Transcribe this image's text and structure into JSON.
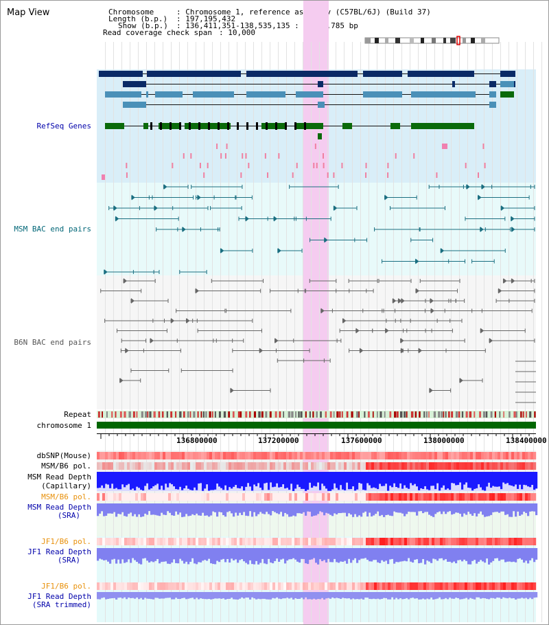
{
  "page": {
    "title": "Map View"
  },
  "info": {
    "chromosome_key": "Chromosome",
    "chromosome_val": ": Chromosome 1, reference assembly (C57BL/6J) (Build 37)",
    "length_key": "Length (b.p.)",
    "length_val": ": 197,195,432",
    "show_key": "Show (b.p.)",
    "show_val": ": 136,411,351-138,535,135 : 2,123,785 bp",
    "coverage_key": "Read coverage check span",
    "coverage_val": ": 10,000"
  },
  "tracks": {
    "refseq": "RefSeq Genes",
    "msm_bac": "MSM BAC end pairs",
    "b6n_bac": "B6N BAC end pairs",
    "repeat": "Repeat",
    "chromosome": "chromosome 1",
    "dbsnp": "dbSNP(Mouse)",
    "msm_b6_pol_1": "MSM/B6 pol.",
    "msm_read_depth_cap_1": "MSM Read Depth",
    "msm_read_depth_cap_2": "(Capillary)",
    "msm_b6_pol_2": "MSM/B6 pol.",
    "msm_read_depth_sra_1": "MSM Read Depth",
    "msm_read_depth_sra_2": "(SRA)",
    "jf1_b6_pol_1": "JF1/B6 pol.",
    "jf1_read_depth_sra_1": "JF1 Read Depth",
    "jf1_read_depth_sra_2": "(SRA)",
    "jf1_b6_pol_2": "JF1/B6 pol.",
    "jf1_read_depth_trim_1": "JF1 Read Depth",
    "jf1_read_depth_trim_2": "(SRA trimmed)"
  },
  "axis": {
    "ticks": [
      "136800000",
      "137200000",
      "137600000",
      "138000000",
      "138400000"
    ]
  },
  "colors": {
    "refseq_bg": "#d9eef8",
    "bac_bg": "#e8fafa",
    "highlight": "#f5ccf0",
    "chrom_green": "#006600",
    "label_blue": "#0000aa",
    "label_teal": "#006677",
    "label_orange": "#e8900a",
    "depth_blue": "#1a1aff",
    "depth_lilac": "#8080f0"
  }
}
